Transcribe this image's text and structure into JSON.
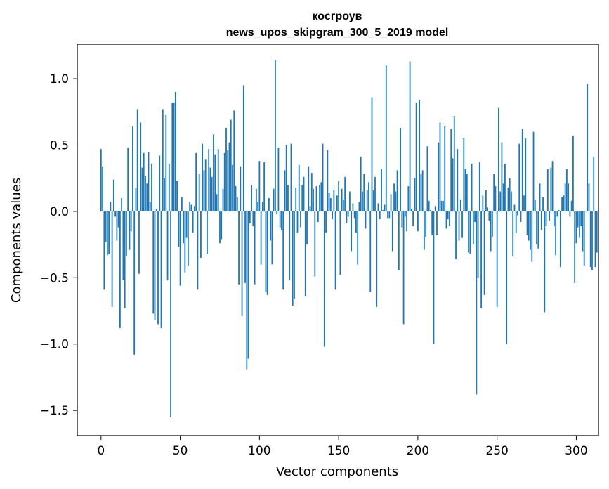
{
  "chart_data": {
    "type": "bar",
    "title": "косгроув",
    "subtitle": "news_upos_skipgram_300_5_2019 model",
    "xlabel": "Vector components",
    "ylabel": "Components values",
    "xlim": [
      -15,
      314
    ],
    "ylim": [
      -1.69,
      1.26
    ],
    "xticks": [
      0,
      50,
      100,
      150,
      200,
      250,
      300
    ],
    "xtick_labels": [
      "0",
      "50",
      "100",
      "150",
      "200",
      "250",
      "300"
    ],
    "yticks": [
      -1.5,
      -1.0,
      -0.5,
      0.0,
      0.5,
      1.0
    ],
    "ytick_labels": [
      "−1.5",
      "−1.0",
      "−0.5",
      "0.0",
      "0.5",
      "1.0"
    ],
    "bar_color": "#1f77b4",
    "grid": false,
    "values": [
      0.47,
      0.34,
      -0.59,
      -0.23,
      -0.33,
      -0.32,
      0.07,
      -0.72,
      0.24,
      -0.04,
      -0.22,
      -0.12,
      -0.88,
      0.1,
      -0.52,
      -0.73,
      -0.34,
      0.48,
      -0.29,
      -0.15,
      0.64,
      -1.08,
      0.18,
      0.77,
      -0.47,
      0.67,
      0.33,
      0.44,
      0.27,
      0.21,
      0.45,
      0.07,
      0.36,
      -0.77,
      -0.82,
      0.02,
      -0.85,
      0.42,
      -0.88,
      0.77,
      0.25,
      0.73,
      -0.52,
      0.36,
      -1.55,
      0.82,
      0.82,
      0.9,
      0.23,
      -0.27,
      -0.56,
      0.11,
      -0.24,
      -0.46,
      -0.2,
      -0.41,
      0.07,
      0.05,
      -0.16,
      0.04,
      0.44,
      -0.59,
      0.28,
      -0.35,
      0.51,
      0.31,
      0.39,
      -0.32,
      0.47,
      0.33,
      0.26,
      0.58,
      0.43,
      0.13,
      0.47,
      -0.24,
      -0.21,
      0.17,
      0.44,
      0.63,
      0.46,
      0.52,
      0.69,
      0.35,
      0.76,
      0.19,
      0.11,
      -0.55,
      0.34,
      -0.79,
      0.95,
      -0.54,
      -1.19,
      -1.11,
      -0.09,
      0.2,
      -0.11,
      -0.55,
      0.17,
      0.07,
      0.38,
      -0.4,
      0.07,
      0.37,
      -0.61,
      -0.63,
      0.1,
      -0.22,
      -0.4,
      0.17,
      1.14,
      -0.02,
      0.48,
      -0.12,
      -0.14,
      -0.59,
      0.31,
      0.5,
      0.2,
      -0.52,
      0.51,
      -0.71,
      -0.66,
      0.18,
      -0.16,
      0.35,
      -0.12,
      0.2,
      0.26,
      -0.64,
      -0.25,
      0.34,
      0.04,
      0.29,
      0.17,
      -0.49,
      0.19,
      -0.08,
      0.2,
      0.22,
      0.51,
      -1.02,
      -0.16,
      0.46,
      0.14,
      0.1,
      -0.06,
      0.16,
      -0.59,
      0.12,
      0.23,
      -0.48,
      0.17,
      0.09,
      0.26,
      -0.09,
      -0.04,
      0.15,
      -0.3,
      0.06,
      -0.05,
      -0.16,
      -0.4,
      0.07,
      0.41,
      0.15,
      0.28,
      -0.13,
      0.16,
      0.22,
      -0.61,
      0.86,
      0.16,
      0.26,
      -0.72,
      0.06,
      -0.06,
      0.32,
      0.01,
      0.05,
      1.1,
      -0.05,
      -0.05,
      0.13,
      -0.3,
      0.21,
      0.15,
      0.31,
      -0.44,
      0.63,
      -0.12,
      -0.85,
      -0.04,
      -0.15,
      0.19,
      1.13,
      0.02,
      -0.11,
      0.25,
      0.82,
      -0.15,
      0.84,
      0.28,
      0.31,
      -0.29,
      -0.19,
      0.49,
      0.08,
      0.01,
      -0.18,
      -1.0,
      0.04,
      -0.18,
      0.52,
      0.67,
      0.08,
      0.08,
      0.64,
      -0.13,
      -0.06,
      -0.11,
      0.62,
      0.4,
      0.72,
      -0.36,
      0.47,
      -0.22,
      0.09,
      -0.2,
      0.55,
      0.32,
      0.28,
      -0.31,
      -0.32,
      0.36,
      -0.25,
      -0.08,
      -1.38,
      -0.5,
      0.37,
      -0.73,
      0.12,
      -0.63,
      0.16,
      0.03,
      -0.07,
      -0.3,
      -0.19,
      0.28,
      0.19,
      -0.72,
      0.78,
      0.15,
      0.52,
      0.21,
      0.36,
      -1.0,
      0.18,
      0.25,
      0.15,
      -0.34,
      0.05,
      -0.16,
      -0.03,
      0.51,
      -0.08,
      0.62,
      0.12,
      0.55,
      -0.18,
      -0.22,
      -0.29,
      -0.38,
      0.6,
      0.09,
      -0.25,
      -0.28,
      0.21,
      -0.14,
      0.11,
      -0.76,
      -0.11,
      0.32,
      -0.07,
      0.33,
      0.38,
      -0.11,
      -0.33,
      -0.04,
      0.01,
      -0.42,
      0.11,
      0.12,
      0.21,
      0.32,
      0.21,
      -0.04,
      0.08,
      0.57,
      -0.54,
      -0.24,
      -0.12,
      -0.2,
      -0.11,
      -0.3,
      -0.41,
      0.0,
      0.96,
      0.21,
      -0.42,
      -0.44,
      0.41,
      -0.42,
      -0.31
    ]
  }
}
